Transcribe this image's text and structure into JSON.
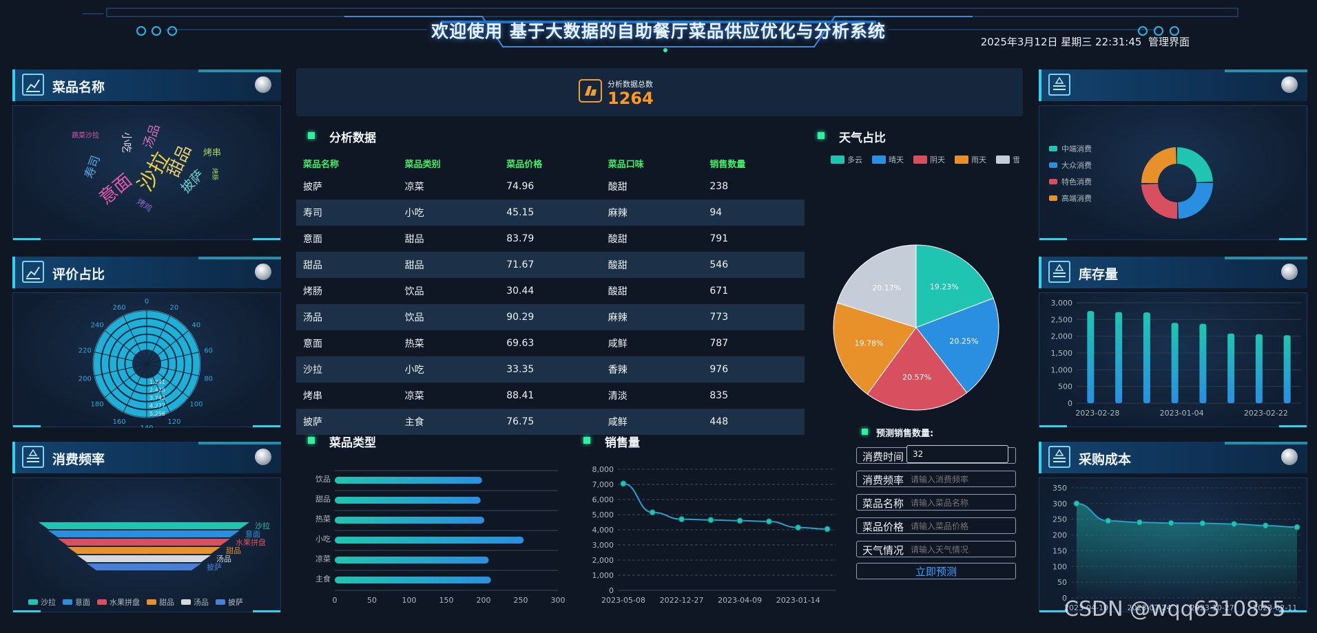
{
  "header": {
    "title": "欢迎使用 基于大数据的自助餐厅菜品供应优化与分析系统",
    "datetime": "2025年3月12日 星期三 22:31:45",
    "admin_label": "管理界面"
  },
  "total": {
    "label": "分析数据总数",
    "value": "1264"
  },
  "sections": {
    "analysis": "分析数据",
    "weather": "天气占比",
    "dish_type": "菜品类型",
    "sales": "销售量",
    "predict": "预测销售数量:"
  },
  "left_panels": [
    {
      "title": "菜品名称",
      "icon": "chart-line-icon"
    },
    {
      "title": "评价占比",
      "icon": "chart-line-icon"
    },
    {
      "title": "消费频率",
      "icon": "list-icon"
    }
  ],
  "right_panels": [
    {
      "title": "",
      "icon": "list-icon"
    },
    {
      "title": "库存量",
      "icon": "list-icon"
    },
    {
      "title": "采购成本",
      "icon": "list-icon"
    }
  ],
  "word_cloud": {
    "words": [
      {
        "text": "蔬菜沙拉",
        "color": "#e05ab0"
      },
      {
        "text": "小吃",
        "color": "#d8dde4"
      },
      {
        "text": "汤品",
        "color": "#d56cc0"
      },
      {
        "text": "烤串",
        "color": "#a5d85a"
      },
      {
        "text": "寿司",
        "color": "#5aa8e0"
      },
      {
        "text": "甜品",
        "color": "#e8d070"
      },
      {
        "text": "沙拉",
        "color": "#f0d040"
      },
      {
        "text": "意面",
        "color": "#e05ab0"
      },
      {
        "text": "披萨",
        "color": "#6cd0c8"
      },
      {
        "text": "烤肠",
        "color": "#a5d85a"
      },
      {
        "text": "烤鸡",
        "color": "#8a6cd0"
      }
    ]
  },
  "polar_chart": {
    "angle_labels": [
      "0",
      "20",
      "40",
      "60",
      "80",
      "100",
      "120",
      "140",
      "160",
      "180",
      "200",
      "220",
      "240",
      "260"
    ],
    "ring_labels": [
      "1,241",
      "2,425",
      "3,742",
      "4,277",
      "5,256"
    ]
  },
  "funnel": {
    "legend": [
      "沙拉",
      "意面",
      "水果拼盘",
      "甜品",
      "汤品",
      "披萨"
    ],
    "labels": [
      "沙拉",
      "意面",
      "水果拼盘",
      "甜品",
      "汤品",
      "披萨"
    ],
    "colors": [
      "#1fc5b0",
      "#2a8fe0",
      "#d8505f",
      "#e8902a",
      "#d4d9df",
      "#4a7fd8"
    ]
  },
  "table": {
    "headers": [
      "菜品名称",
      "菜品类别",
      "菜品价格",
      "菜品口味",
      "销售数量"
    ],
    "rows": [
      [
        "披萨",
        "凉菜",
        "74.96",
        "酸甜",
        "238"
      ],
      [
        "寿司",
        "小吃",
        "45.15",
        "麻辣",
        "94"
      ],
      [
        "意面",
        "甜品",
        "83.79",
        "酸甜",
        "791"
      ],
      [
        "甜品",
        "甜品",
        "71.67",
        "酸甜",
        "546"
      ],
      [
        "烤肠",
        "饮品",
        "30.44",
        "酸甜",
        "671"
      ],
      [
        "汤品",
        "饮品",
        "90.29",
        "麻辣",
        "773"
      ],
      [
        "意面",
        "热菜",
        "69.63",
        "咸鲜",
        "787"
      ],
      [
        "沙拉",
        "小吃",
        "33.35",
        "香辣",
        "976"
      ],
      [
        "烤串",
        "凉菜",
        "88.41",
        "清淡",
        "835"
      ],
      [
        "披萨",
        "主食",
        "76.75",
        "咸鲜",
        "448"
      ]
    ]
  },
  "weather_pie": {
    "legend": [
      "多云",
      "晴天",
      "阴天",
      "雨天",
      "雪天"
    ],
    "values": [
      19.23,
      20.25,
      20.57,
      19.78,
      20.17
    ],
    "labels": [
      "19.23%",
      "20.25%",
      "20.57%",
      "19.78%",
      "20.17%"
    ],
    "colors": [
      "#1fc5b0",
      "#2a8fe0",
      "#d8505f",
      "#e8902a",
      "#c5ced8"
    ]
  },
  "consumption_donut": {
    "legend": [
      "中端消费",
      "大众消费",
      "特色消费",
      "高端消费"
    ],
    "values": [
      25,
      25,
      25,
      25
    ],
    "colors": [
      "#1fc5b0",
      "#2a8fe0",
      "#d8505f",
      "#e8902a"
    ]
  },
  "chart_data": [
    {
      "type": "bar",
      "orientation": "horizontal",
      "categories": [
        "饮品",
        "甜品",
        "热菜",
        "小吃",
        "凉菜",
        "主食"
      ],
      "values": [
        198,
        196,
        201,
        254,
        207,
        210
      ],
      "xlim": [
        0,
        300
      ],
      "xticks": [
        "0",
        "50",
        "100",
        "150",
        "200",
        "250",
        "300"
      ]
    },
    {
      "type": "line",
      "x": [
        "2023-05-08",
        "",
        "2022-12-27",
        "",
        "2023-04-09",
        "",
        "2023-01-14",
        ""
      ],
      "xticklabels": [
        "2023-05-08",
        "2022-12-27",
        "2023-04-09",
        "2023-01-14"
      ],
      "values": [
        7050,
        5150,
        4700,
        4650,
        4600,
        4550,
        4150,
        4050
      ],
      "ylim": [
        0,
        8000
      ],
      "yticks": [
        "0",
        "1,000",
        "2,000",
        "3,000",
        "4,000",
        "5,000",
        "6,000",
        "7,000",
        "8,000"
      ]
    },
    {
      "type": "bar",
      "values": [
        2750,
        2720,
        2710,
        2400,
        2370,
        2080,
        2060,
        2030
      ],
      "ylim": [
        0,
        3000
      ],
      "yticks": [
        "0",
        "500",
        "1,000",
        "1,500",
        "2,000",
        "2,500",
        "3,000"
      ],
      "xticklabels": [
        "2023-02-28",
        "2023-01-04",
        "2023-02-22"
      ]
    },
    {
      "type": "area",
      "values": [
        300,
        245,
        240,
        238,
        237,
        235,
        230,
        225
      ],
      "ylim": [
        0,
        350
      ],
      "yticks": [
        "0",
        "50",
        "100",
        "150",
        "200",
        "250",
        "300",
        "350"
      ],
      "xticklabels": [
        "2023-04-10",
        "2023-07-24",
        "2023-10-27",
        "2023-02-11"
      ]
    }
  ],
  "form": {
    "fields": [
      {
        "label": "消费时间",
        "value": "32",
        "placeholder": ""
      },
      {
        "label": "消费频率",
        "value": "",
        "placeholder": "请输入消费频率"
      },
      {
        "label": "菜品名称",
        "value": "",
        "placeholder": "请输入菜品名称"
      },
      {
        "label": "菜品价格",
        "value": "",
        "placeholder": "请输入菜品价格"
      },
      {
        "label": "天气情况",
        "value": "",
        "placeholder": "请输入天气情况"
      }
    ],
    "submit_label": "立即预测"
  },
  "watermark": "CSDN @wqq6310855"
}
